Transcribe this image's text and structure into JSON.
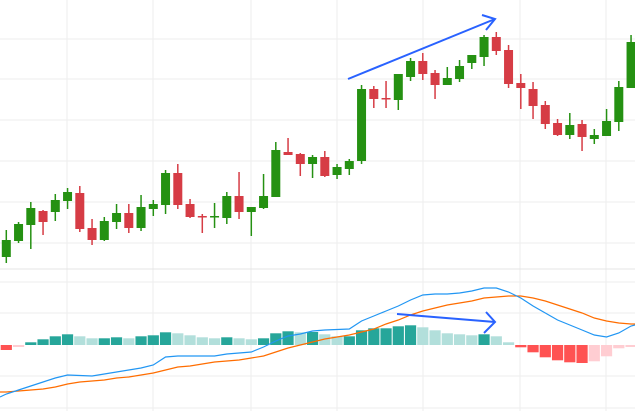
{
  "chart_data": [
    {
      "type": "candlestick",
      "grid": true,
      "colors": {
        "up": "#259112",
        "down": "#d63c45",
        "grid": "#ededed",
        "annotation": "#2962ff"
      },
      "ohlc_fields": [
        "open",
        "high",
        "low",
        "close"
      ],
      "candles": [
        [
          4.3,
          7.0,
          3.7,
          6.0
        ],
        [
          5.9,
          7.8,
          5.7,
          7.6
        ],
        [
          7.5,
          9.8,
          5.1,
          9.2
        ],
        [
          8.9,
          9.0,
          6.5,
          7.8
        ],
        [
          8.8,
          10.6,
          7.9,
          10.0
        ],
        [
          9.9,
          11.2,
          9.1,
          10.8
        ],
        [
          10.7,
          11.4,
          6.8,
          7.1
        ],
        [
          7.2,
          8.1,
          5.5,
          6.0
        ],
        [
          6.0,
          8.3,
          5.9,
          7.9
        ],
        [
          7.8,
          9.6,
          7.1,
          8.7
        ],
        [
          8.7,
          9.6,
          6.7,
          7.2
        ],
        [
          7.2,
          10.5,
          6.9,
          9.3
        ],
        [
          9.1,
          10.0,
          8.4,
          9.6
        ],
        [
          9.5,
          13.0,
          8.6,
          12.7
        ],
        [
          12.7,
          13.6,
          9.1,
          9.5
        ],
        [
          9.6,
          10.1,
          8.2,
          8.3
        ],
        [
          8.4,
          8.6,
          6.7,
          8.3
        ],
        [
          8.3,
          9.7,
          7.2,
          8.4
        ],
        [
          8.2,
          10.8,
          7.6,
          10.4
        ],
        [
          10.4,
          12.8,
          8.1,
          8.8
        ],
        [
          8.8,
          9.3,
          6.4,
          9.3
        ],
        [
          9.2,
          12.6,
          9.1,
          10.4
        ],
        [
          10.3,
          15.8,
          10.3,
          15.0
        ],
        [
          14.8,
          16.2,
          14.5,
          14.5
        ],
        [
          14.6,
          14.7,
          12.4,
          13.6
        ],
        [
          13.6,
          14.5,
          12.2,
          14.3
        ],
        [
          14.3,
          14.9,
          12.3,
          12.4
        ],
        [
          12.5,
          13.6,
          12.1,
          13.3
        ],
        [
          13.1,
          14.1,
          12.5,
          13.9
        ],
        [
          13.9,
          21.5,
          13.6,
          21.1
        ],
        [
          21.1,
          21.4,
          19.2,
          20.1
        ],
        [
          20.2,
          21.9,
          19.2,
          20.1
        ],
        [
          20.0,
          22.6,
          19.0,
          22.6
        ],
        [
          22.3,
          24.2,
          21.9,
          23.9
        ],
        [
          23.9,
          24.7,
          22.0,
          22.6
        ],
        [
          22.7,
          23.0,
          20.1,
          21.5
        ],
        [
          21.5,
          23.3,
          21.5,
          22.2
        ],
        [
          22.1,
          24.0,
          21.8,
          23.4
        ],
        [
          23.7,
          24.5,
          23.1,
          24.5
        ],
        [
          24.3,
          26.5,
          23.4,
          26.3
        ],
        [
          26.3,
          26.8,
          24.5,
          24.9
        ],
        [
          25.0,
          25.5,
          21.2,
          21.6
        ],
        [
          21.7,
          22.6,
          19.1,
          21.2
        ],
        [
          21.1,
          21.8,
          18.1,
          19.4
        ],
        [
          19.5,
          19.9,
          17.1,
          17.6
        ],
        [
          17.7,
          18.1,
          16.4,
          16.5
        ],
        [
          16.5,
          18.7,
          16.1,
          17.5
        ],
        [
          17.6,
          18.0,
          14.9,
          16.3
        ],
        [
          16.1,
          17.1,
          15.6,
          16.5
        ],
        [
          16.4,
          19.1,
          16.4,
          17.9
        ],
        [
          17.8,
          21.9,
          16.9,
          21.3
        ],
        [
          21.2,
          26.5,
          21.2,
          25.8
        ]
      ],
      "annotation": {
        "type": "trend-arrow",
        "from_candle": 30,
        "to_candle": 41,
        "direction": "up"
      }
    },
    {
      "type": "macd",
      "grid": true,
      "colors": {
        "macd": "#2196f3",
        "signal": "#ff6d00",
        "hist_up_strong": "#26a69a",
        "hist_up_weak": "#b2dfdb",
        "hist_down_strong": "#ff5252",
        "hist_down_weak": "#ffcdd2",
        "annotation": "#2962ff"
      },
      "macd": [
        -4.9,
        -4.5,
        -4.1,
        -3.7,
        -3.3,
        -3.0,
        -3.05,
        -3.1,
        -2.9,
        -2.7,
        -2.5,
        -2.3,
        -2.0,
        -1.2,
        -1.1,
        -1.1,
        -1.1,
        -1.1,
        -0.9,
        -0.8,
        -0.7,
        -0.2,
        0.4,
        0.9,
        1.1,
        1.4,
        1.5,
        1.55,
        1.6,
        2.4,
        2.9,
        3.4,
        3.9,
        4.5,
        5.0,
        5.1,
        5.1,
        5.2,
        5.4,
        5.7,
        5.7,
        5.3,
        4.7,
        3.9,
        3.2,
        2.5,
        2.0,
        1.5,
        1.0,
        0.8,
        1.2,
        1.9
      ],
      "signal": [
        -4.7,
        -4.6,
        -4.5,
        -4.4,
        -4.2,
        -3.9,
        -3.7,
        -3.6,
        -3.5,
        -3.3,
        -3.2,
        -3.0,
        -2.8,
        -2.5,
        -2.2,
        -2.1,
        -1.9,
        -1.7,
        -1.6,
        -1.5,
        -1.3,
        -1.1,
        -0.7,
        -0.3,
        0.0,
        0.3,
        0.6,
        0.8,
        1.0,
        1.3,
        1.6,
        2.1,
        2.5,
        3.0,
        3.4,
        3.7,
        4.0,
        4.2,
        4.4,
        4.7,
        4.8,
        4.9,
        4.9,
        4.7,
        4.4,
        4.0,
        3.6,
        3.2,
        2.7,
        2.4,
        2.2,
        2.1
      ],
      "histogram": [
        -0.5,
        -0.2,
        0.27,
        0.57,
        0.87,
        1.07,
        0.87,
        0.67,
        0.67,
        0.77,
        0.67,
        0.87,
        0.97,
        1.27,
        1.17,
        0.97,
        0.77,
        0.67,
        0.77,
        0.67,
        0.57,
        0.67,
        1.17,
        1.37,
        1.27,
        1.3,
        1.07,
        0.87,
        0.87,
        1.47,
        1.67,
        1.67,
        1.87,
        1.97,
        1.77,
        1.47,
        1.17,
        1.07,
        0.97,
        1.07,
        0.87,
        0.27,
        -0.23,
        -0.73,
        -1.23,
        -1.53,
        -1.73,
        -1.8,
        -1.63,
        -1.13,
        -0.33,
        -0.2
      ],
      "annotation": {
        "type": "trend-arrow",
        "from_candle": 33,
        "to_candle": 41,
        "direction": "down"
      }
    }
  ]
}
